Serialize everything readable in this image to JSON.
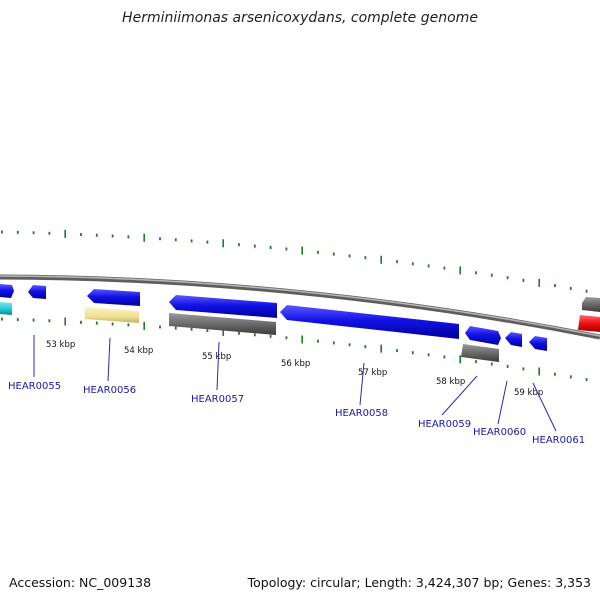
{
  "title": "Herminiimonas arsenicoxydans, complete genome",
  "accession": "Accession: NC_009138",
  "topology": "Topology: circular; Length: 3,424,307 bp; Genes: 3,353",
  "colors": {
    "backbone": "#8a8a8a",
    "forward_gene": "#1010e0",
    "reverse_gene": "#6a6a6a",
    "pale_gene": "#f2e49a",
    "cyan_gene": "#22c6d6",
    "red_gene": "#ee1111",
    "tick": "#1e7d1e",
    "label": "#1a1aa6"
  },
  "kbp_labels": [
    "53 kbp",
    "54 kbp",
    "55 kbp",
    "56 kbp",
    "57 kbp",
    "58 kbp",
    "59 kbp"
  ],
  "gene_labels": [
    "HEAR0055",
    "HEAR0056",
    "HEAR0057",
    "HEAR0058",
    "HEAR0059",
    "HEAR0060",
    "HEAR0061"
  ]
}
